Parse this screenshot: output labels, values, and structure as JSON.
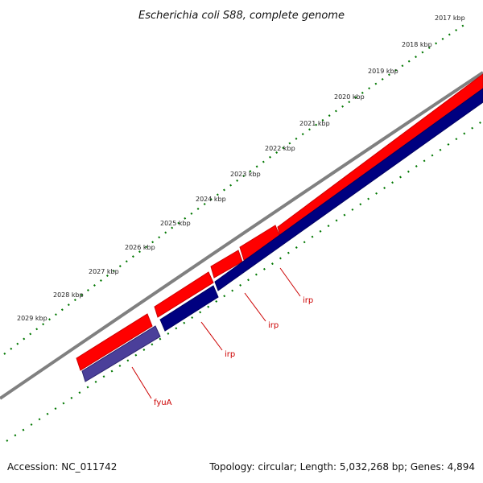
{
  "title": "Escherichia coli S88, complete genome",
  "tick_labels": [
    "2017 kbp",
    "2018 kbp",
    "2019 kbp",
    "2020 kbp",
    "2021 kbp",
    "2022 kbp",
    "2023 kbp",
    "2024 kbp",
    "2025 kbp",
    "2026 kbp",
    "2027 kbp",
    "2028 kbp",
    "2029 kbp"
  ],
  "feature_labels": [
    "irp",
    "irp",
    "irp",
    "fyuA"
  ],
  "footer": {
    "accession": "Accession: NC_011742",
    "summary": "Topology: circular; Length: 5,032,268 bp; Genes: 4,894"
  },
  "colors": {
    "forward_genes": "#ff0000",
    "reverse_genes": "#000080",
    "highlight_gene": "#4b3f9a",
    "backbone": "#808080",
    "ticks": "#007700",
    "feature_label": "#cc0000"
  }
}
